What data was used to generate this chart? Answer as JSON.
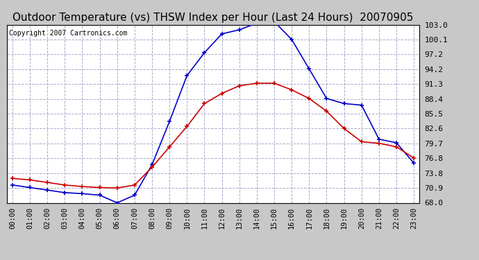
{
  "title": "Outdoor Temperature (vs) THSW Index per Hour (Last 24 Hours)  20070905",
  "copyright": "Copyright 2007 Cartronics.com",
  "hours": [
    0,
    1,
    2,
    3,
    4,
    5,
    6,
    7,
    8,
    9,
    10,
    11,
    12,
    13,
    14,
    15,
    16,
    17,
    18,
    19,
    20,
    21,
    22,
    23
  ],
  "hour_labels": [
    "00:00",
    "01:00",
    "02:00",
    "03:00",
    "04:00",
    "05:00",
    "06:00",
    "07:00",
    "08:00",
    "09:00",
    "10:00",
    "11:00",
    "12:00",
    "13:00",
    "14:00",
    "15:00",
    "16:00",
    "17:00",
    "18:00",
    "19:00",
    "20:00",
    "21:00",
    "22:00",
    "23:00"
  ],
  "temp_red": [
    72.8,
    72.5,
    72.0,
    71.5,
    71.2,
    71.0,
    70.9,
    71.5,
    75.0,
    79.0,
    83.0,
    87.5,
    89.5,
    91.0,
    91.5,
    91.5,
    90.2,
    88.5,
    86.0,
    82.6,
    80.0,
    79.7,
    79.0,
    76.8
  ],
  "thsw_blue": [
    71.5,
    71.0,
    70.5,
    70.0,
    69.8,
    69.5,
    68.0,
    69.5,
    75.5,
    84.0,
    93.0,
    97.5,
    101.2,
    102.0,
    103.3,
    103.6,
    100.1,
    94.3,
    88.5,
    87.5,
    87.2,
    80.5,
    79.8,
    75.8
  ],
  "ylim_min": 68.0,
  "ylim_max": 103.0,
  "yticks": [
    68.0,
    70.9,
    73.8,
    76.8,
    79.7,
    82.6,
    85.5,
    88.4,
    91.3,
    94.2,
    97.2,
    100.1,
    103.0
  ],
  "bg_color": "#c8c8c8",
  "plot_bg": "#ffffff",
  "grid_color": "#aaaacc",
  "line_red": "#cc0000",
  "line_blue": "#0000cc",
  "title_fontsize": 11,
  "copyright_fontsize": 7,
  "tick_fontsize": 7.5,
  "ytick_fontsize": 8
}
